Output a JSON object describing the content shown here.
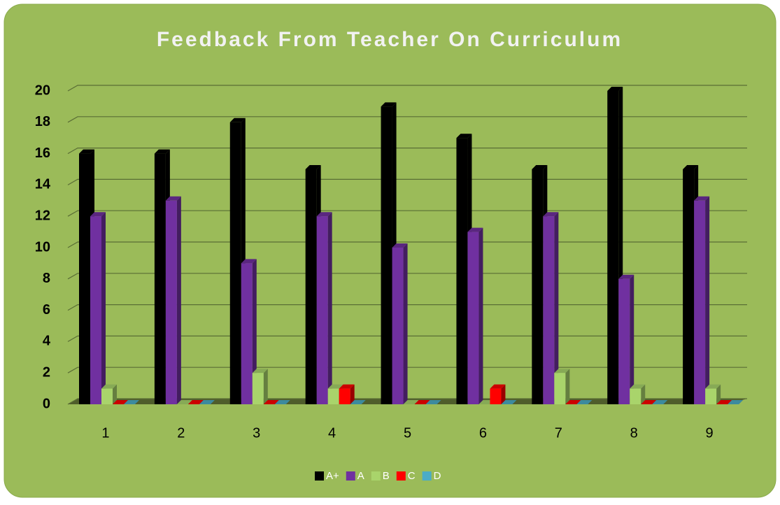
{
  "chart_data": {
    "type": "bar3d",
    "title": "Feedback From Teacher On Curriculum",
    "categories": [
      "1",
      "2",
      "3",
      "4",
      "5",
      "6",
      "7",
      "8",
      "9"
    ],
    "series": [
      {
        "name": "A+",
        "color": "#000000",
        "values": [
          16,
          16,
          18,
          15,
          19,
          17,
          15,
          20,
          15
        ]
      },
      {
        "name": "A",
        "color": "#7030a0",
        "values": [
          12,
          13,
          9,
          12,
          10,
          11,
          12,
          8,
          13
        ]
      },
      {
        "name": "B",
        "color": "#a9d46b",
        "values": [
          1,
          0,
          2,
          1,
          0,
          0,
          2,
          1,
          1
        ]
      },
      {
        "name": "C",
        "color": "#ff0000",
        "values": [
          0,
          0,
          0,
          1,
          0,
          1,
          0,
          0,
          0
        ]
      },
      {
        "name": "D",
        "color": "#4bacc6",
        "values": [
          0,
          0,
          0,
          0,
          0,
          0,
          0,
          0,
          0
        ]
      }
    ],
    "ylim": [
      0,
      20
    ],
    "yticks": [
      0,
      2,
      4,
      6,
      8,
      10,
      12,
      14,
      16,
      18,
      20
    ],
    "grid": true,
    "legend": "bottom"
  }
}
